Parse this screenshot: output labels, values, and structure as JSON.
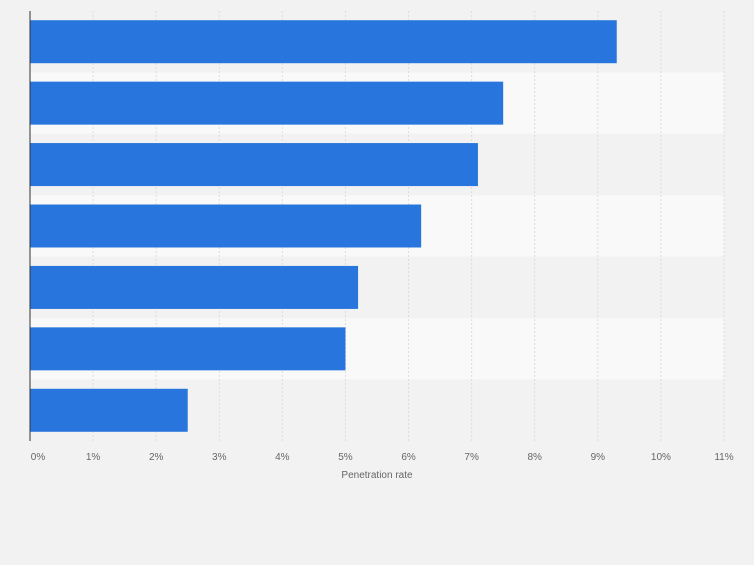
{
  "chart_data": {
    "type": "bar",
    "orientation": "horizontal",
    "title": "",
    "categories": [
      "",
      "",
      "",
      "",
      "",
      "",
      ""
    ],
    "values": [
      9.3,
      7.5,
      7.1,
      6.2,
      5.2,
      5.0,
      2.5
    ],
    "xlabel": "Penetration rate",
    "ylabel": "",
    "xlim": [
      0,
      11
    ],
    "x_ticks": [
      "0%",
      "1%",
      "2%",
      "3%",
      "4%",
      "5%",
      "6%",
      "7%",
      "8%",
      "9%",
      "10%",
      "11%"
    ],
    "grid": true,
    "bar_color": "#2876dd",
    "band_colors": [
      "#f2f2f2",
      "#f9f9f9"
    ],
    "grid_color": "#dcdcdc",
    "axis_color": "#333333",
    "label_color": "#666666"
  }
}
